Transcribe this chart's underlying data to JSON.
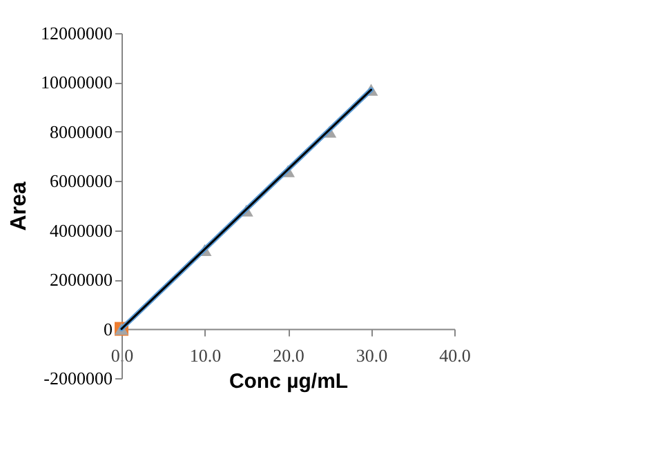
{
  "chart_data": {
    "type": "scatter",
    "xlabel": "Conc µg/mL",
    "ylabel": "Area",
    "xlim": [
      0,
      40
    ],
    "xticks": [
      {
        "value": 0,
        "label": "0.0"
      },
      {
        "value": 10,
        "label": "10.0"
      },
      {
        "value": 20,
        "label": "20.0"
      },
      {
        "value": 30,
        "label": "30.0"
      },
      {
        "value": 40,
        "label": "40.0"
      }
    ],
    "ylim": [
      -2000000,
      12000000
    ],
    "yticks": [
      -2000000,
      0,
      2000000,
      4000000,
      6000000,
      8000000,
      10000000,
      12000000
    ],
    "grid": false,
    "series": [
      {
        "marker": "square",
        "color": "#ed7d31",
        "x": [
          0
        ],
        "values": [
          0
        ]
      },
      {
        "marker": "triangle",
        "color": "#a5a5a5",
        "x": [
          0,
          10,
          15,
          20,
          25,
          30
        ],
        "values": [
          0,
          3200000,
          4800000,
          6400000,
          8000000,
          9700000
        ]
      },
      {
        "type": "line",
        "line_style": "solid",
        "color": "#5b9bd5",
        "x": [
          0,
          30
        ],
        "values": [
          0,
          9700000
        ]
      },
      {
        "type": "line",
        "line_style": "solid",
        "color": "#000000",
        "x": [
          0,
          30
        ],
        "values": [
          0,
          9700000
        ]
      }
    ]
  }
}
